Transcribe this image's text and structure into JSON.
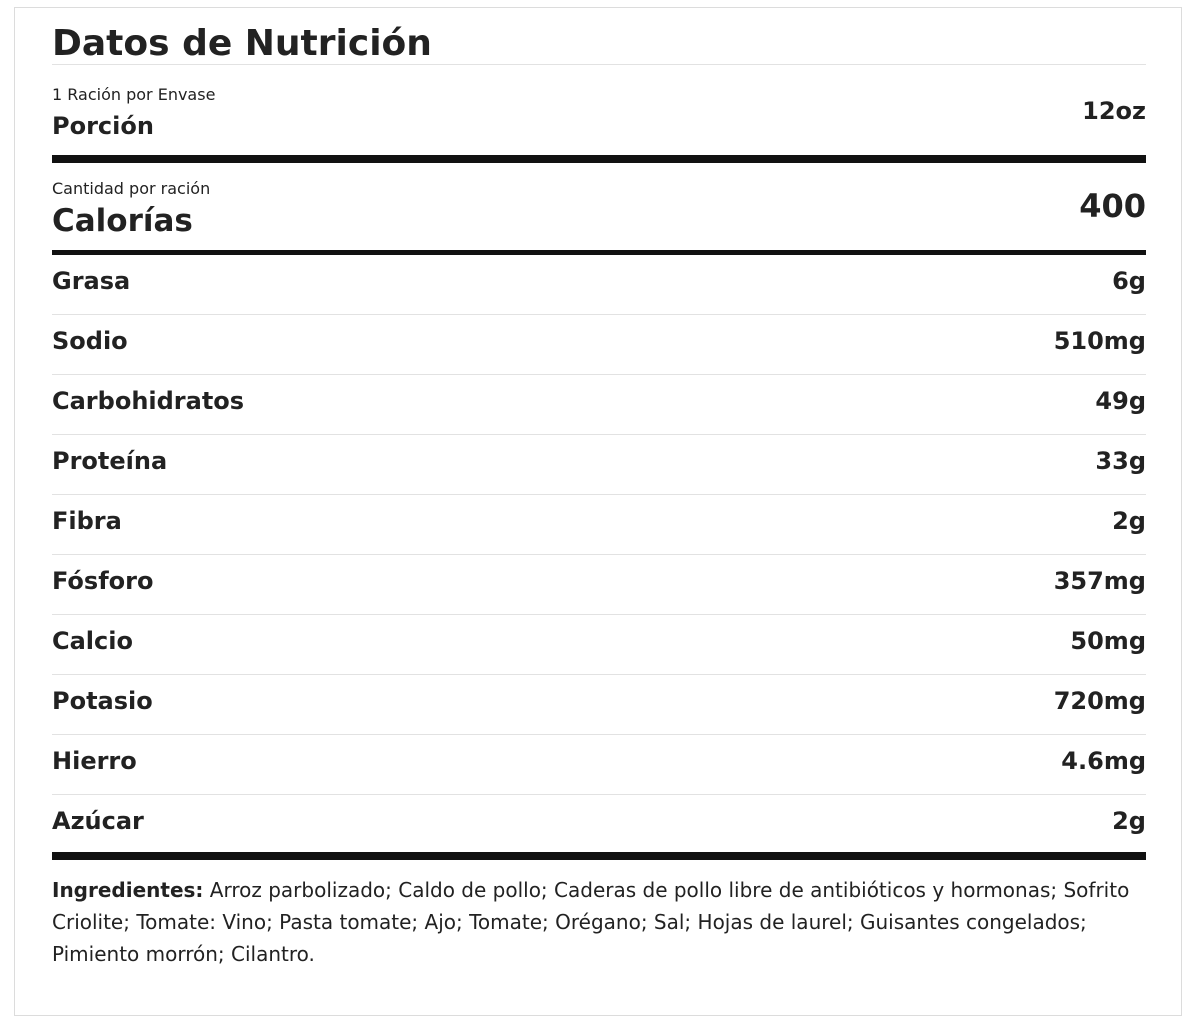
{
  "title": "Datos de Nutrición",
  "serving": {
    "per_container": "1 Ración por Envase",
    "label": "Porción",
    "size": "12oz"
  },
  "calories": {
    "caption": "Cantidad por ración",
    "label": "Calorías",
    "value": "400"
  },
  "nutrients": [
    {
      "name": "Grasa",
      "amount": "6g"
    },
    {
      "name": "Sodio",
      "amount": "510mg"
    },
    {
      "name": "Carbohidratos",
      "amount": "49g"
    },
    {
      "name": "Proteína",
      "amount": "33g"
    },
    {
      "name": "Fibra",
      "amount": "2g"
    },
    {
      "name": "Fósforo",
      "amount": "357mg"
    },
    {
      "name": "Calcio",
      "amount": "50mg"
    },
    {
      "name": "Potasio",
      "amount": "720mg"
    },
    {
      "name": "Hierro",
      "amount": "4.6mg"
    },
    {
      "name": "Azúcar",
      "amount": "2g"
    }
  ],
  "ingredients": {
    "label": "Ingredientes:",
    "text": "Arroz parbolizado; Caldo de pollo; Caderas de pollo libre de antibióticos y hormonas; Sofrito Criolite; Tomate: Vino; Pasta tomate; Ajo; Tomate; Orégano; Sal; Hojas de laurel; Guisantes congelados; Pimiento morrón; Cilantro."
  }
}
